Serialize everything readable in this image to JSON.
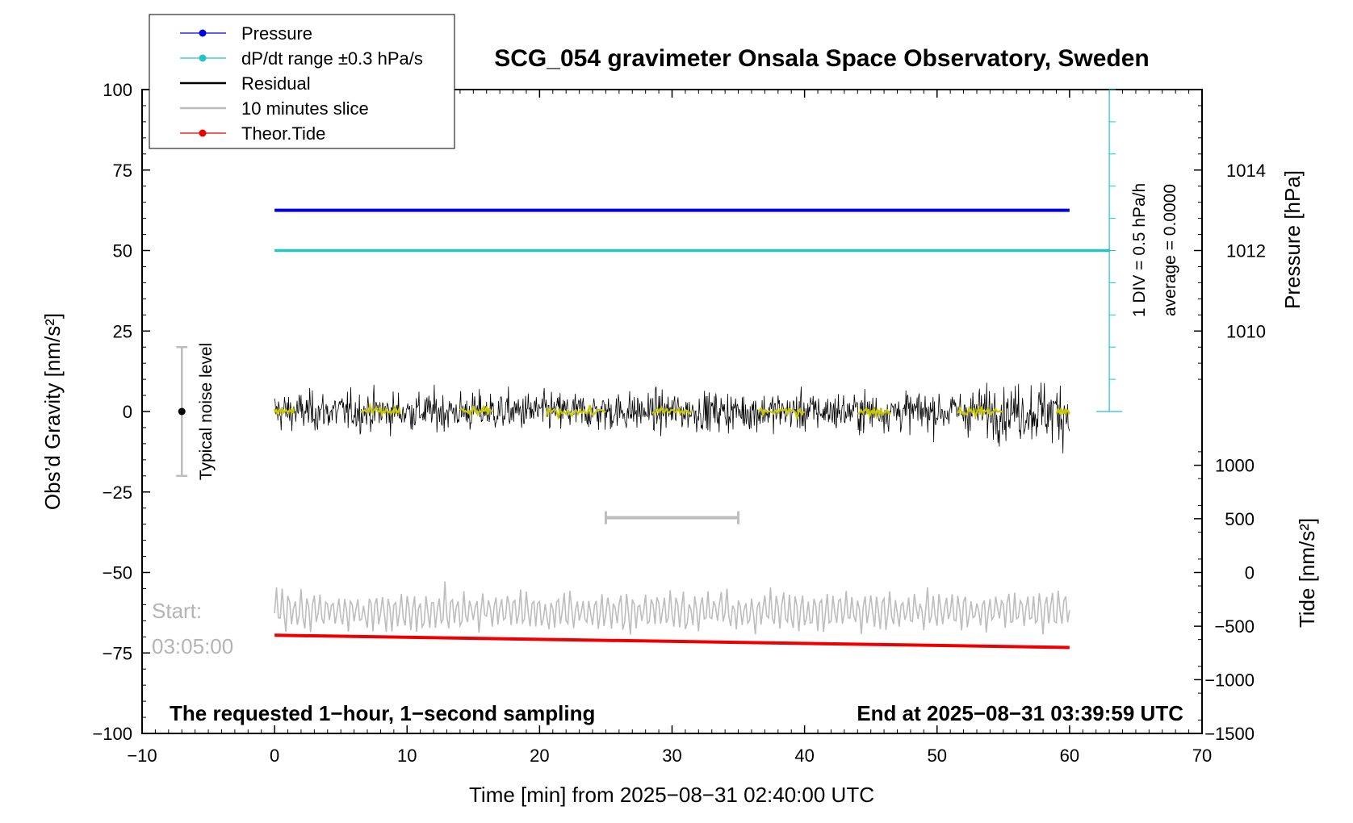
{
  "colors": {
    "pressure": "#0000ee",
    "dpdt": "#22c4c4",
    "residual": "#000000",
    "slice": "#bdbdbd",
    "tide": "#ee0000",
    "smoothed": "#c8c800"
  },
  "chart_data": {
    "type": "line",
    "title": "SCG_054 gravimeter Onsala Space Observatory, Sweden",
    "xlabel": "Time [min] from 2025−08−31 02:40:00 UTC",
    "ylabel_left": "Obs’d Gravity [nm/s²]",
    "ylabel_right_pressure": "Pressure [hPa]",
    "ylabel_right_tide": "Tide [nm/s²]",
    "xlim": [
      -10,
      70
    ],
    "ylim_left": [
      -100,
      100
    ],
    "x_ticks": [
      "−10",
      "0",
      "10",
      "20",
      "30",
      "40",
      "50",
      "60",
      "70"
    ],
    "y_ticks_left": [
      "−100",
      "−75",
      "−50",
      "−25",
      "0",
      "25",
      "50",
      "75",
      "100"
    ],
    "pressure_ticks": [
      "1010",
      "1012",
      "1014"
    ],
    "pressure_tick_positions_gravity": [
      25,
      50,
      75
    ],
    "tide_ticks": [
      "−1500",
      "−1000",
      "−500",
      "0",
      "500",
      "1000"
    ],
    "tide_tick_positions_gravity": [
      -100,
      -83.3,
      -66.7,
      -50,
      -33.3,
      -16.7
    ],
    "legend": {
      "position": "top-left",
      "entries": [
        "Pressure",
        "dP/dt range ±0.3 hPa/s",
        "Residual",
        "10 minutes slice",
        "Theor.Tide"
      ]
    },
    "series": [
      {
        "name": "Pressure",
        "type": "line",
        "x": [
          0,
          60
        ],
        "y": [
          62.5,
          62.5
        ]
      },
      {
        "name": "dP/dt range ±0.3 hPa/s",
        "type": "line",
        "x": [
          0,
          60
        ],
        "y": [
          50,
          50
        ]
      },
      {
        "name": "Residual",
        "type": "noise",
        "x_range": [
          0,
          60
        ],
        "center": 0,
        "amplitude": 5,
        "max_excursion": 13
      },
      {
        "name": "10 minutes slice",
        "type": "noise",
        "x_range": [
          0,
          60
        ],
        "center": -62,
        "amplitude": 5
      },
      {
        "name": "Theor.Tide",
        "type": "line",
        "x": [
          0,
          60
        ],
        "y": [
          -69.5,
          -73.3
        ]
      }
    ],
    "noise_level_bar": {
      "label": "Typical noise level",
      "x": -7,
      "y_range": [
        -20,
        20
      ],
      "center": 0
    },
    "slice_marker": {
      "x_range": [
        25,
        35
      ],
      "y": -33
    },
    "pressure_scale_note": "1 DIV = 0.5 hPa/h",
    "average_note": "average = 0.0000",
    "start_label": "Start:",
    "start_time": "03:05:00",
    "note_left": "The requested 1−hour, 1−second sampling",
    "note_right": "End at 2025−08−31 03:39:59 UTC"
  }
}
